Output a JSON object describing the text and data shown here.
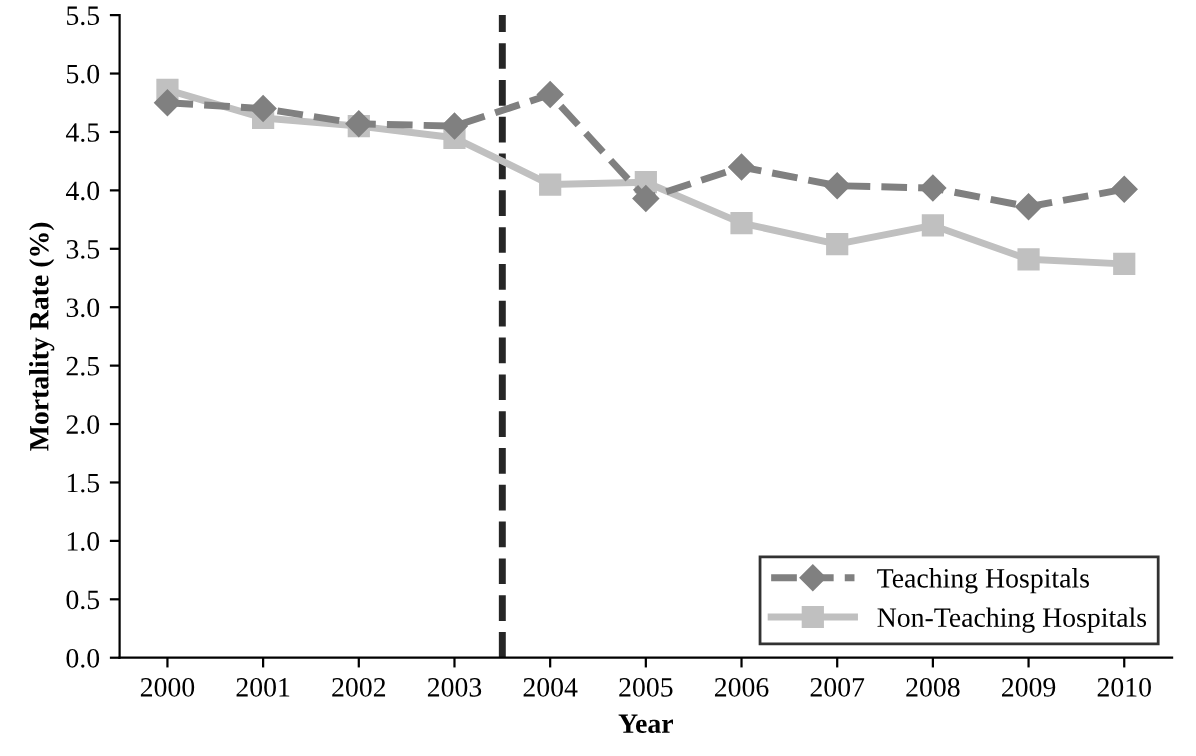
{
  "chart_data": {
    "type": "line",
    "xlabel": "Year",
    "ylabel": "Mortality Rate (%)",
    "x": [
      2000,
      2001,
      2002,
      2003,
      2004,
      2005,
      2006,
      2007,
      2008,
      2009,
      2010
    ],
    "xlim": [
      1999.5,
      2010.5
    ],
    "xticks": [
      2000,
      2001,
      2002,
      2003,
      2004,
      2005,
      2006,
      2007,
      2008,
      2009,
      2010
    ],
    "ylim": [
      0,
      5.5
    ],
    "yticks": [
      {
        "value": 0,
        "label": "0.0"
      },
      {
        "value": 0.5,
        "label": "0.5"
      },
      {
        "value": 1,
        "label": "1.0"
      },
      {
        "value": 1.5,
        "label": "1.5"
      },
      {
        "value": 2,
        "label": "2.0"
      },
      {
        "value": 2.5,
        "label": "2.5"
      },
      {
        "value": 3,
        "label": "3.0"
      },
      {
        "value": 3.5,
        "label": "3.5"
      },
      {
        "value": 4,
        "label": "4.0"
      },
      {
        "value": 4.5,
        "label": "4.5"
      },
      {
        "value": 5,
        "label": "5.0"
      },
      {
        "value": 5.5,
        "label": "5.5"
      }
    ],
    "grid": false,
    "legend": "bottom right",
    "series": [
      {
        "name": "Teaching Hospitals",
        "color": "#808080",
        "marker": "diamond",
        "line_style": "dashed",
        "values": [
          4.75,
          4.7,
          4.57,
          4.55,
          4.82,
          3.93,
          4.2,
          4.04,
          4.02,
          3.86,
          4.01
        ]
      },
      {
        "name": "Non-Teaching Hospitals",
        "color": "#c0c0c0",
        "marker": "square",
        "line_style": "solid",
        "values": [
          4.86,
          4.62,
          4.55,
          4.45,
          4.05,
          4.07,
          3.72,
          3.54,
          3.7,
          3.41,
          3.37
        ]
      }
    ],
    "ref_lines": [
      {
        "axis": "x",
        "value": 2003.5,
        "color": "#262626",
        "line_style": "dashed"
      }
    ]
  }
}
